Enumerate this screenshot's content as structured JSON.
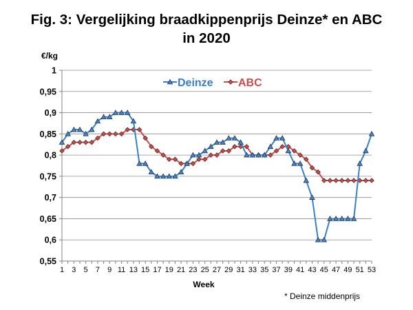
{
  "header": {
    "title_line1": "Fig. 3: Vergelijking braadkippenprijs Deinze* en ABC",
    "title_line2": "in 2020"
  },
  "footnote": "* Deinze middenprijs",
  "chart_data": {
    "type": "line",
    "title": "Fig. 3: Vergelijking braadkippenprijs Deinze* en ABC in 2020",
    "xlabel": "Week",
    "ylabel": "€/kg",
    "ylim": [
      0.55,
      1
    ],
    "yticks": [
      "0,55",
      "0,6",
      "0,65",
      "0,7",
      "0,75",
      "0,8",
      "0,85",
      "0,9",
      "0,95",
      "1"
    ],
    "x": [
      1,
      2,
      3,
      4,
      5,
      6,
      7,
      8,
      9,
      10,
      11,
      12,
      13,
      14,
      15,
      16,
      17,
      18,
      19,
      20,
      21,
      22,
      23,
      24,
      25,
      26,
      27,
      28,
      29,
      30,
      31,
      32,
      33,
      34,
      35,
      36,
      37,
      38,
      39,
      40,
      41,
      42,
      43,
      44,
      45,
      46,
      47,
      48,
      49,
      50,
      51,
      52,
      53
    ],
    "xtick_labels": [
      "1",
      "3",
      "5",
      "7",
      "9",
      "11",
      "13",
      "15",
      "17",
      "19",
      "21",
      "23",
      "25",
      "27",
      "29",
      "31",
      "33",
      "35",
      "37",
      "39",
      "41",
      "43",
      "45",
      "47",
      "49",
      "51",
      "53"
    ],
    "grid": "horizontal",
    "legend_position": "top-center",
    "series": [
      {
        "name": "Deinze",
        "color": "#3a7fc1",
        "marker": "triangle",
        "values": [
          0.83,
          0.85,
          0.86,
          0.86,
          0.85,
          0.86,
          0.88,
          0.89,
          0.89,
          0.9,
          0.9,
          0.9,
          0.88,
          0.78,
          0.78,
          0.76,
          0.75,
          0.75,
          0.75,
          0.75,
          0.76,
          0.78,
          0.8,
          0.8,
          0.81,
          0.82,
          0.83,
          0.83,
          0.84,
          0.84,
          0.83,
          0.8,
          0.8,
          0.8,
          0.8,
          0.82,
          0.84,
          0.84,
          0.81,
          0.78,
          0.78,
          0.74,
          0.7,
          0.6,
          0.6,
          0.65,
          0.65,
          0.65,
          0.65,
          0.65,
          0.78,
          0.81,
          0.85
        ]
      },
      {
        "name": "ABC",
        "color": "#c0504d",
        "marker": "diamond",
        "values": [
          0.81,
          0.82,
          0.83,
          0.83,
          0.83,
          0.83,
          0.84,
          0.85,
          0.85,
          0.85,
          0.85,
          0.86,
          0.86,
          0.86,
          0.84,
          0.82,
          0.81,
          0.8,
          0.79,
          0.79,
          0.78,
          0.78,
          0.78,
          0.79,
          0.79,
          0.8,
          0.8,
          0.81,
          0.81,
          0.82,
          0.82,
          0.82,
          0.8,
          0.8,
          0.8,
          0.8,
          0.81,
          0.82,
          0.82,
          0.81,
          0.8,
          0.79,
          0.77,
          0.76,
          0.74,
          0.74,
          0.74,
          0.74,
          0.74,
          0.74,
          0.74,
          0.74,
          0.74
        ]
      }
    ]
  }
}
